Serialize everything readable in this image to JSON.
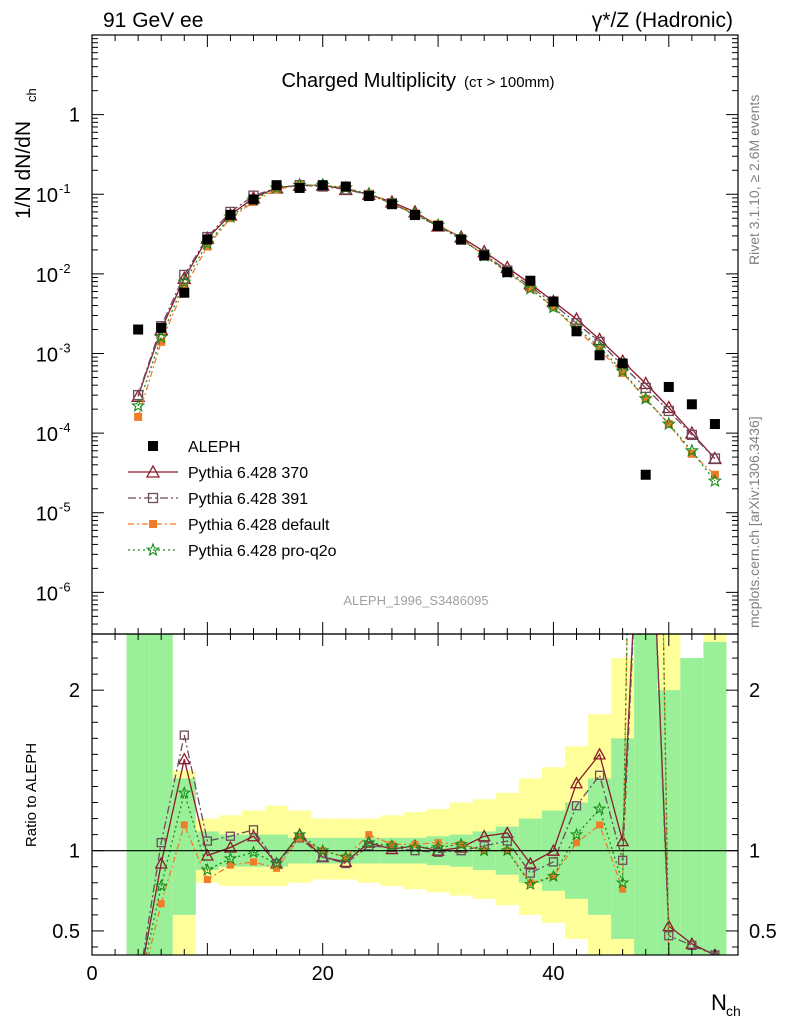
{
  "header": {
    "left": "91 GeV ee",
    "right": "γ*/Z (Hadronic)"
  },
  "side_text": {
    "rivet": "Rivet 3.1.10, ≥ 2.6M events",
    "mcplots": "mcplots.cern.ch [arXiv:1306.3436]"
  },
  "chart_data": {
    "type": "line",
    "title": "Charged Multiplicity",
    "title_note": "(cτ > 100mm)",
    "watermark": "ALEPH_1996_S3486095",
    "xlabel": "N",
    "xlabel_sub": "ch",
    "ylabel": "1/N dN/dN",
    "ylabel_sub": "ch",
    "ratio_ylabel": "Ratio to ALEPH",
    "x_range": [
      0,
      56
    ],
    "y_scale": "log",
    "y_range": [
      3e-07,
      10
    ],
    "ratio_range": [
      0.35,
      2.35
    ],
    "x_ticks": [
      0,
      20,
      40
    ],
    "y_ticks": [
      {
        "exp": -6,
        "label": "10",
        "sup": "-6"
      },
      {
        "exp": -5,
        "label": "10",
        "sup": "-5"
      },
      {
        "exp": -4,
        "label": "10",
        "sup": "-4"
      },
      {
        "exp": -3,
        "label": "10",
        "sup": "-3"
      },
      {
        "exp": -2,
        "label": "10",
        "sup": "-2"
      },
      {
        "exp": -1,
        "label": "10",
        "sup": "-1"
      },
      {
        "exp": 0,
        "label": "1",
        "sup": ""
      }
    ],
    "ratio_ticks": [
      {
        "v": 0.5,
        "label": "0.5"
      },
      {
        "v": 1,
        "label": "1"
      },
      {
        "v": 2,
        "label": "2"
      }
    ],
    "legend_position": "middle-left",
    "x": [
      4,
      6,
      8,
      10,
      12,
      14,
      16,
      18,
      20,
      22,
      24,
      26,
      28,
      30,
      32,
      34,
      36,
      38,
      40,
      42,
      44,
      46,
      48,
      50,
      52,
      54
    ],
    "data": {
      "name": "ALEPH",
      "values": [
        0.002,
        0.0021,
        0.0058,
        0.027,
        0.055,
        0.086,
        0.13,
        0.12,
        0.13,
        0.125,
        0.095,
        0.075,
        0.055,
        0.04,
        0.027,
        0.017,
        0.0105,
        0.0082,
        0.0045,
        0.0019,
        0.00095,
        0.00075,
        3e-05,
        0.00038,
        0.00023,
        0.00013
      ]
    },
    "series": [
      {
        "name": "Pythia 6.428 370",
        "color": "#8b1a2b",
        "marker": "triangle",
        "dash": "",
        "values": [
          0.00029,
          0.002,
          0.0088,
          0.028,
          0.055,
          0.09,
          0.12,
          0.13,
          0.13,
          0.115,
          0.1,
          0.08,
          0.06,
          0.04,
          0.029,
          0.019,
          0.012,
          0.0075,
          0.0045,
          0.0027,
          0.0015,
          0.0008,
          0.00042,
          0.00021,
          0.0001,
          4.8e-05
        ]
      },
      {
        "name": "Pythia 6.428 391",
        "color": "#6e4b5e",
        "marker": "square",
        "dash": "8,3,2,3",
        "values": [
          0.0003,
          0.0022,
          0.0097,
          0.029,
          0.06,
          0.096,
          0.12,
          0.13,
          0.125,
          0.115,
          0.098,
          0.077,
          0.055,
          0.04,
          0.027,
          0.0175,
          0.011,
          0.007,
          0.0042,
          0.0024,
          0.0014,
          0.0007,
          0.00037,
          0.00019,
          9.5e-05,
          4.8e-05
        ]
      },
      {
        "name": "Pythia 6.428 default",
        "color": "#f07c2a",
        "marker": "filled-square",
        "dash": "6,3,2,3",
        "values": [
          0.00016,
          0.0014,
          0.0067,
          0.022,
          0.05,
          0.08,
          0.115,
          0.13,
          0.13,
          0.12,
          0.1,
          0.078,
          0.057,
          0.042,
          0.028,
          0.017,
          0.0105,
          0.0066,
          0.0038,
          0.002,
          0.0011,
          0.00057,
          0.00027,
          0.00013,
          5.5e-05,
          3e-05
        ]
      },
      {
        "name": "Pythia 6.428 pro-q2o",
        "color": "#1a8a1a",
        "marker": "star",
        "dash": "2,3",
        "values": [
          0.00022,
          0.0016,
          0.0079,
          0.024,
          0.052,
          0.085,
          0.12,
          0.13,
          0.13,
          0.12,
          0.1,
          0.077,
          0.056,
          0.041,
          0.028,
          0.017,
          0.0105,
          0.0065,
          0.0038,
          0.0021,
          0.0012,
          0.0006,
          0.00027,
          0.00013,
          6e-05,
          2.5e-05
        ]
      }
    ],
    "ratio_series": [
      {
        "name": "Pythia 6.428 370",
        "values": [
          0.14,
          0.92,
          1.57,
          0.97,
          1.02,
          1.09,
          0.92,
          1.1,
          0.96,
          0.93,
          1.05,
          1.01,
          1.03,
          1.0,
          1.02,
          1.09,
          1.11,
          0.92,
          1.0,
          1.42,
          1.6,
          1.06,
          4.0,
          0.53,
          0.42,
          0.35
        ]
      },
      {
        "name": "Pythia 6.428 391",
        "values": [
          0.15,
          1.05,
          1.72,
          1.06,
          1.09,
          1.13,
          0.92,
          1.08,
          0.96,
          0.92,
          1.03,
          1.02,
          1.0,
          0.99,
          1.0,
          1.03,
          1.06,
          0.86,
          0.93,
          1.28,
          1.47,
          0.94,
          4.0,
          0.47,
          0.41,
          0.35
        ]
      },
      {
        "name": "Pythia 6.428 default",
        "values": [
          0.08,
          0.67,
          1.16,
          0.82,
          0.91,
          0.93,
          0.89,
          1.08,
          1.0,
          0.96,
          1.1,
          1.04,
          1.04,
          1.05,
          1.04,
          1.0,
          1.0,
          0.8,
          0.84,
          1.05,
          1.16,
          0.76,
          9.0,
          0.34,
          0.24,
          0.23
        ]
      },
      {
        "name": "Pythia 6.428 pro-q2o",
        "values": [
          0.11,
          0.78,
          1.36,
          0.88,
          0.95,
          0.99,
          0.92,
          1.1,
          1.0,
          0.96,
          1.05,
          1.03,
          1.02,
          1.02,
          1.04,
          1.0,
          1.0,
          0.79,
          0.84,
          1.1,
          1.26,
          0.8,
          9.0,
          0.34,
          0.26,
          0.19
        ]
      }
    ],
    "ratio_bands": {
      "inner": [
        [
          0.0,
          5.0
        ],
        [
          0.0,
          5.0
        ],
        [
          0.6,
          1.45
        ],
        [
          0.88,
          1.12
        ],
        [
          0.9,
          1.1
        ],
        [
          0.9,
          1.1
        ],
        [
          0.9,
          1.1
        ],
        [
          0.92,
          1.08
        ],
        [
          0.92,
          1.08
        ],
        [
          0.92,
          1.08
        ],
        [
          0.92,
          1.08
        ],
        [
          0.92,
          1.08
        ],
        [
          0.92,
          1.08
        ],
        [
          0.91,
          1.09
        ],
        [
          0.9,
          1.1
        ],
        [
          0.88,
          1.12
        ],
        [
          0.85,
          1.15
        ],
        [
          0.8,
          1.2
        ],
        [
          0.75,
          1.25
        ],
        [
          0.7,
          1.3
        ],
        [
          0.6,
          1.45
        ],
        [
          0.45,
          1.7
        ],
        [
          0.0,
          5.0
        ],
        [
          0.0,
          2.0
        ],
        [
          0.0,
          2.2
        ],
        [
          0.0,
          2.3
        ]
      ],
      "outer": [
        [
          0.0,
          5.0
        ],
        [
          0.0,
          2.3
        ],
        [
          0.0,
          1.5
        ],
        [
          0.8,
          1.2
        ],
        [
          0.78,
          1.22
        ],
        [
          0.78,
          1.25
        ],
        [
          0.78,
          1.28
        ],
        [
          0.8,
          1.25
        ],
        [
          0.82,
          1.2
        ],
        [
          0.82,
          1.2
        ],
        [
          0.8,
          1.2
        ],
        [
          0.78,
          1.22
        ],
        [
          0.76,
          1.24
        ],
        [
          0.74,
          1.26
        ],
        [
          0.72,
          1.3
        ],
        [
          0.7,
          1.32
        ],
        [
          0.66,
          1.36
        ],
        [
          0.6,
          1.45
        ],
        [
          0.55,
          1.52
        ],
        [
          0.45,
          1.65
        ],
        [
          0.35,
          1.85
        ],
        [
          0.0,
          2.2
        ],
        [
          0.0,
          5.0
        ],
        [
          0.0,
          5.0
        ],
        [
          0.0,
          2.2
        ],
        [
          0.0,
          5.0
        ]
      ]
    }
  }
}
